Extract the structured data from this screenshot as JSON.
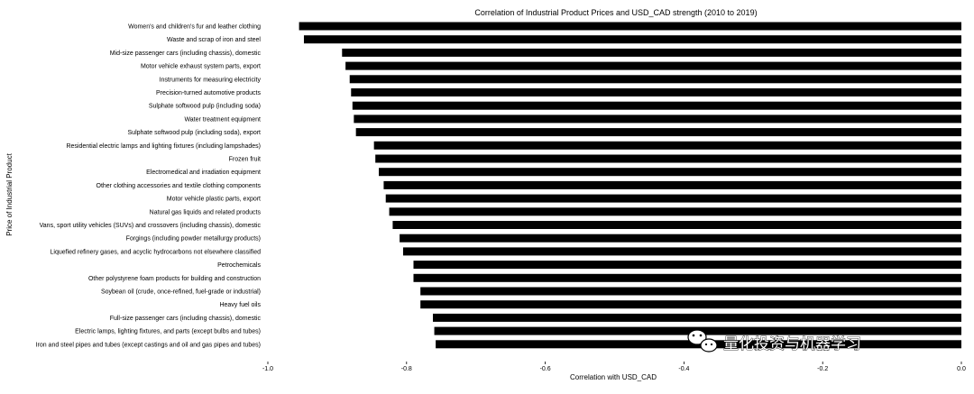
{
  "chart_data": {
    "type": "bar",
    "orientation": "horizontal",
    "title": "Correlation of Industrial Product Prices and USD_CAD strength (2010 to 2019)",
    "xlabel": "Correlation with USD_CAD",
    "ylabel": "Price of Industrial Product",
    "xlim": [
      -1.0,
      0.0
    ],
    "xticks": [
      "-1.0",
      "-0.8",
      "-0.6",
      "-0.4",
      "-0.2",
      "0.0"
    ],
    "grid": false,
    "categories": [
      "Women's and children's fur and leather clothing",
      "Waste and scrap of iron and steel",
      "Mid-size passenger cars (including chassis), domestic",
      "Motor vehicle exhaust system parts, export",
      "Instruments for measuring electricity",
      "Precision-turned automotive products",
      "Sulphate softwood pulp (including soda)",
      "Water treatment equipment",
      "Sulphate softwood pulp (including soda), export",
      "Residential electric lamps and lighting fixtures (including lampshades)",
      "Frozen fruit",
      "Electromedical and irradiation equipment",
      "Other clothing accessories and textile clothing components",
      "Motor vehicle plastic parts, export",
      "Natural gas liquids and related products",
      "Vans, sport utility vehicles (SUVs) and crossovers (including chassis), domestic",
      "Forgings (including powder metallurgy products)",
      "Liquefied refinery gases, and acyclic hydrocarbons not elsewhere classified",
      "Petrochemicals",
      "Other polystyrene foam products for building and construction",
      "Soybean oil (crude, once-refined, fuel-grade or industrial)",
      "Heavy fuel oils",
      "Full-size passenger cars (including chassis), domestic",
      "Electric lamps, lighting fixtures, and parts (except bulbs and tubes)",
      "Iron and steel pipes and tubes (except castings and oil and gas pipes and tubes)"
    ],
    "values": [
      -0.955,
      -0.948,
      -0.893,
      -0.888,
      -0.882,
      -0.88,
      -0.878,
      -0.876,
      -0.873,
      -0.847,
      -0.845,
      -0.84,
      -0.833,
      -0.83,
      -0.825,
      -0.82,
      -0.81,
      -0.805,
      -0.79,
      -0.79,
      -0.78,
      -0.78,
      -0.762,
      -0.76,
      -0.758
    ],
    "bar_color": "#000000"
  },
  "watermark": {
    "text": "量化投资与机器学习",
    "icon": "wechat-icon"
  }
}
